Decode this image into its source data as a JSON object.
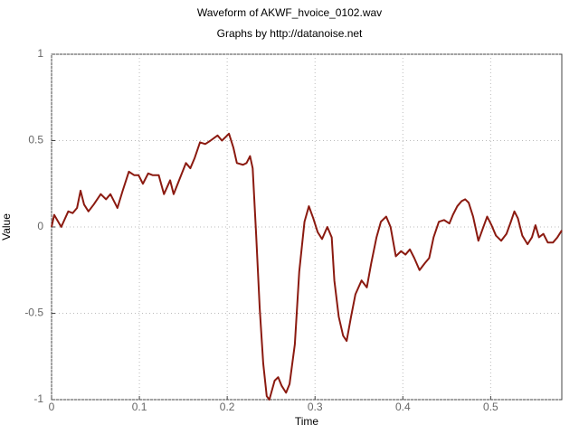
{
  "chart_data": {
    "type": "line",
    "title": "Waveform of AKWF_hvoice_0102.wav",
    "subtitle": "Graphs by http://datanoise.net",
    "x_label": "Time",
    "y_label": "Value",
    "xlim": [
      0,
      0.581
    ],
    "ylim": [
      -1,
      1
    ],
    "xticks": [
      0,
      0.1,
      0.2,
      0.3,
      0.4,
      0.5
    ],
    "yticks": [
      -1,
      -0.5,
      0,
      0.5,
      1
    ],
    "grid": true,
    "x": [
      0,
      0.003,
      0.011,
      0.019,
      0.024,
      0.029,
      0.033,
      0.037,
      0.042,
      0.048,
      0.056,
      0.062,
      0.067,
      0.075,
      0.081,
      0.088,
      0.094,
      0.099,
      0.104,
      0.11,
      0.115,
      0.122,
      0.128,
      0.135,
      0.139,
      0.146,
      0.153,
      0.158,
      0.163,
      0.169,
      0.175,
      0.181,
      0.189,
      0.194,
      0.198,
      0.202,
      0.207,
      0.211,
      0.218,
      0.222,
      0.226,
      0.229,
      0.233,
      0.237,
      0.241,
      0.245,
      0.248,
      0.254,
      0.258,
      0.262,
      0.267,
      0.271,
      0.277,
      0.282,
      0.288,
      0.293,
      0.298,
      0.303,
      0.308,
      0.314,
      0.319,
      0.322,
      0.327,
      0.332,
      0.336,
      0.341,
      0.346,
      0.353,
      0.359,
      0.364,
      0.37,
      0.375,
      0.381,
      0.386,
      0.392,
      0.398,
      0.403,
      0.408,
      0.413,
      0.419,
      0.425,
      0.43,
      0.435,
      0.441,
      0.447,
      0.453,
      0.457,
      0.462,
      0.467,
      0.471,
      0.475,
      0.48,
      0.486,
      0.491,
      0.496,
      0.501,
      0.506,
      0.512,
      0.518,
      0.523,
      0.527,
      0.531,
      0.536,
      0.542,
      0.547,
      0.551,
      0.555,
      0.56,
      0.565,
      0.571,
      0.576,
      0.581
    ],
    "series": [
      {
        "name": "Waveform",
        "color": "#8b1a10",
        "values": [
          0,
          0.07,
          0,
          0.09,
          0.08,
          0.11,
          0.21,
          0.13,
          0.09,
          0.13,
          0.19,
          0.16,
          0.19,
          0.11,
          0.21,
          0.32,
          0.3,
          0.3,
          0.25,
          0.31,
          0.3,
          0.3,
          0.19,
          0.27,
          0.19,
          0.28,
          0.37,
          0.34,
          0.4,
          0.49,
          0.48,
          0.5,
          0.53,
          0.5,
          0.52,
          0.54,
          0.46,
          0.37,
          0.36,
          0.37,
          0.41,
          0.34,
          -0.05,
          -0.47,
          -0.79,
          -0.98,
          -1.0,
          -0.89,
          -0.87,
          -0.92,
          -0.96,
          -0.91,
          -0.68,
          -0.26,
          0.03,
          0.12,
          0.05,
          -0.03,
          -0.07,
          0,
          -0.06,
          -0.31,
          -0.52,
          -0.63,
          -0.66,
          -0.52,
          -0.39,
          -0.31,
          -0.35,
          -0.21,
          -0.06,
          0.03,
          0.06,
          0,
          -0.17,
          -0.14,
          -0.16,
          -0.13,
          -0.18,
          -0.25,
          -0.21,
          -0.18,
          -0.06,
          0.03,
          0.04,
          0.02,
          0.07,
          0.12,
          0.15,
          0.16,
          0.14,
          0.06,
          -0.08,
          -0.01,
          0.06,
          0.01,
          -0.05,
          -0.08,
          -0.04,
          0.03,
          0.09,
          0.05,
          -0.05,
          -0.1,
          -0.06,
          0.01,
          -0.06,
          -0.04,
          -0.09,
          -0.09,
          -0.06,
          -0.02
        ]
      }
    ]
  }
}
